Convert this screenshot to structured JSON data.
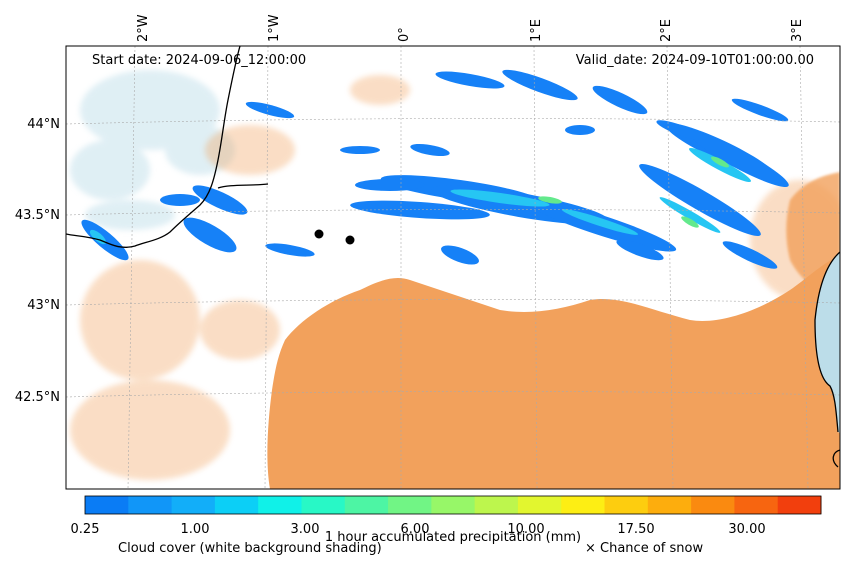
{
  "header": {
    "start_date": "Start date: 2024-09-06_12:00:00",
    "valid_date": "Valid_date: 2024-09-10T01:00:00.00"
  },
  "axes": {
    "lon_labels": [
      "2°W",
      "1°W",
      "0°",
      "1°E",
      "2°E",
      "3°E"
    ],
    "lat_labels": [
      "44°N",
      "43.5°N",
      "43°N",
      "42.5°N"
    ]
  },
  "colorbar": {
    "title": "1 hour accumulated precipitation (mm)",
    "tick_labels": [
      "0.25",
      "1.00",
      "3.00",
      "6.00",
      "10.00",
      "17.50",
      "30.00"
    ],
    "colors": [
      "#0a7cf5",
      "#1196f8",
      "#12aef9",
      "#0ccff6",
      "#10f1e8",
      "#28f8c6",
      "#4df5a4",
      "#71f585",
      "#97f768",
      "#bdf64d",
      "#e2f62f",
      "#fdee14",
      "#fdcd0f",
      "#fdad0d",
      "#fa8a10",
      "#f76510",
      "#f23f0d"
    ]
  },
  "legend": {
    "cloud_cover": "Cloud cover (white background shading)",
    "snow": "× Chance of snow"
  },
  "map_colors": {
    "land_orange": "#f2a15c",
    "sea_blue": "#bcdde9",
    "precip_blue": "#1681f7",
    "precip_cyan": "#26c6f3",
    "precip_green": "#63e98c"
  }
}
